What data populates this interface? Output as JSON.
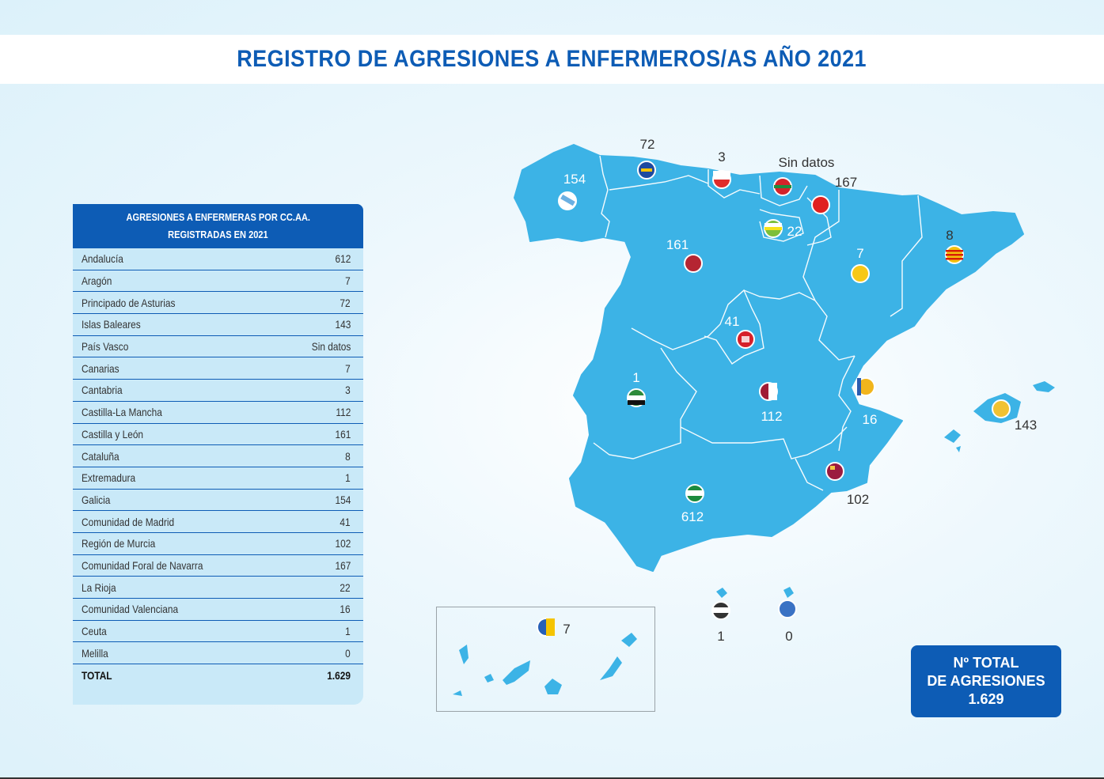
{
  "title": "REGISTRO DE AGRESIONES A ENFERMEROS/AS AÑO 2021",
  "table": {
    "header_line1": "AGRESIONES A ENFERMERAS POR CC.AA.",
    "header_line2": "REGISTRADAS EN 2021",
    "rows": [
      {
        "name": "Andalucía",
        "value": "612"
      },
      {
        "name": "Aragón",
        "value": "7"
      },
      {
        "name": "Principado de Asturias",
        "value": "72"
      },
      {
        "name": "Islas Baleares",
        "value": "143"
      },
      {
        "name": "País Vasco",
        "value": "Sin datos"
      },
      {
        "name": "Canarias",
        "value": "7"
      },
      {
        "name": "Cantabria",
        "value": "3"
      },
      {
        "name": "Castilla-La Mancha",
        "value": "112"
      },
      {
        "name": "Castilla y León",
        "value": "161"
      },
      {
        "name": "Cataluña",
        "value": "8"
      },
      {
        "name": "Extremadura",
        "value": "1"
      },
      {
        "name": "Galicia",
        "value": "154"
      },
      {
        "name": "Comunidad de Madrid",
        "value": "41"
      },
      {
        "name": "Región de Murcia",
        "value": "102"
      },
      {
        "name": "Comunidad Foral de Navarra",
        "value": "167"
      },
      {
        "name": "La Rioja",
        "value": "22"
      },
      {
        "name": "Comunidad Valenciana",
        "value": "16"
      },
      {
        "name": "Ceuta",
        "value": "1"
      },
      {
        "name": "Melilla",
        "value": "0"
      }
    ],
    "total_label": "TOTAL",
    "total_value": "1.629"
  },
  "map": {
    "galicia": "154",
    "asturias": "72",
    "cantabria": "3",
    "pais_vasco": "Sin datos",
    "navarra": "167",
    "rioja": "22",
    "castilla_leon": "161",
    "aragon": "7",
    "cataluna": "8",
    "madrid": "41",
    "extremadura": "1",
    "castilla_mancha": "112",
    "valencia": "16",
    "baleares": "143",
    "murcia": "102",
    "andalucia": "612",
    "canarias": "7",
    "ceuta": "1",
    "melilla": "0"
  },
  "total_box": {
    "line1": "Nº TOTAL",
    "line2": "DE AGRESIONES",
    "line3": "1.629"
  },
  "colors": {
    "brand_blue": "#0d5cb5",
    "map_fill": "#3cb3e6",
    "table_bg": "#c9e9f8"
  }
}
